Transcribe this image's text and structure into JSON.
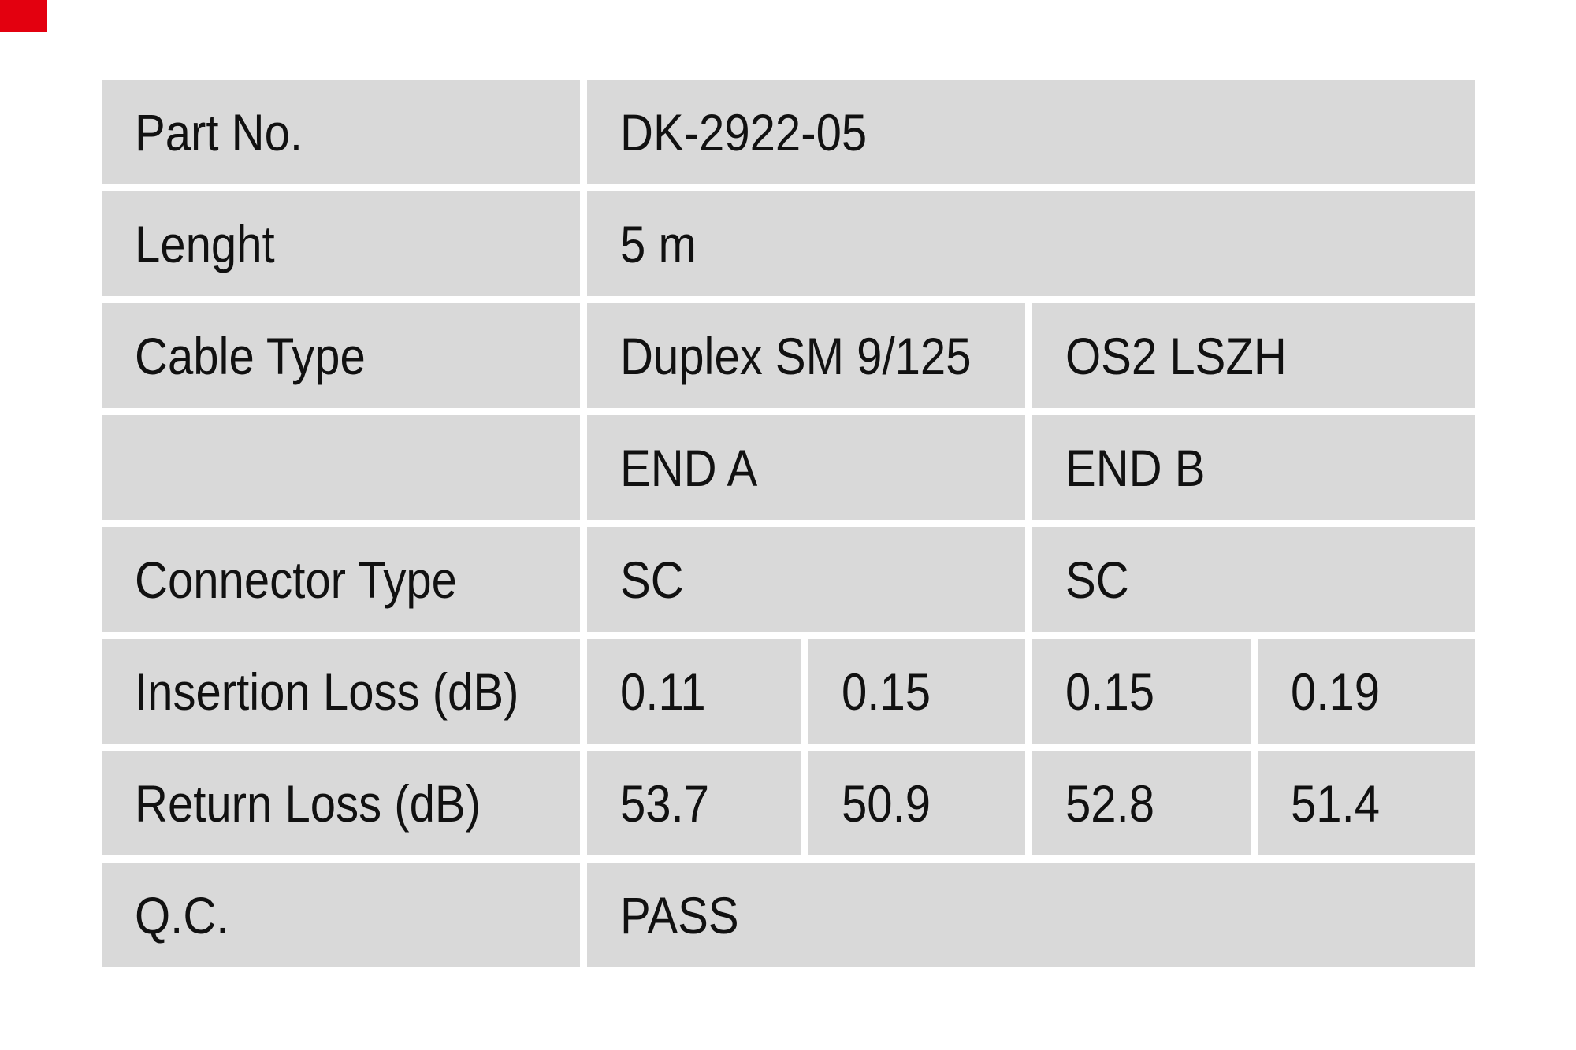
{
  "marker": {
    "color": "#e3000f",
    "width": 60,
    "height": 40
  },
  "table": {
    "cell_bg": "#d9d9d9",
    "text_color": "#111111",
    "rows": [
      {
        "label": "Part No.",
        "values": [
          {
            "text": "DK-2922-05",
            "span": 4
          }
        ]
      },
      {
        "label": "Lenght",
        "values": [
          {
            "text": "5 m",
            "span": 4
          }
        ]
      },
      {
        "label": "Cable Type",
        "values": [
          {
            "text": "Duplex SM 9/125",
            "span": 2
          },
          {
            "text": "OS2 LSZH",
            "span": 2
          }
        ]
      },
      {
        "label": "",
        "values": [
          {
            "text": "END A",
            "span": 2
          },
          {
            "text": "END B",
            "span": 2
          }
        ]
      },
      {
        "label": "Connector Type",
        "values": [
          {
            "text": "SC",
            "span": 2
          },
          {
            "text": "SC",
            "span": 2
          }
        ]
      },
      {
        "label": "Insertion Loss (dB)",
        "values": [
          {
            "text": "0.11",
            "span": 1
          },
          {
            "text": "0.15",
            "span": 1
          },
          {
            "text": "0.15",
            "span": 1
          },
          {
            "text": "0.19",
            "span": 1
          }
        ]
      },
      {
        "label": "Return Loss (dB)",
        "values": [
          {
            "text": "53.7",
            "span": 1
          },
          {
            "text": "50.9",
            "span": 1
          },
          {
            "text": "52.8",
            "span": 1
          },
          {
            "text": "51.4",
            "span": 1
          }
        ]
      },
      {
        "label": "Q.C.",
        "values": [
          {
            "text": "PASS",
            "span": 4
          }
        ]
      }
    ]
  }
}
